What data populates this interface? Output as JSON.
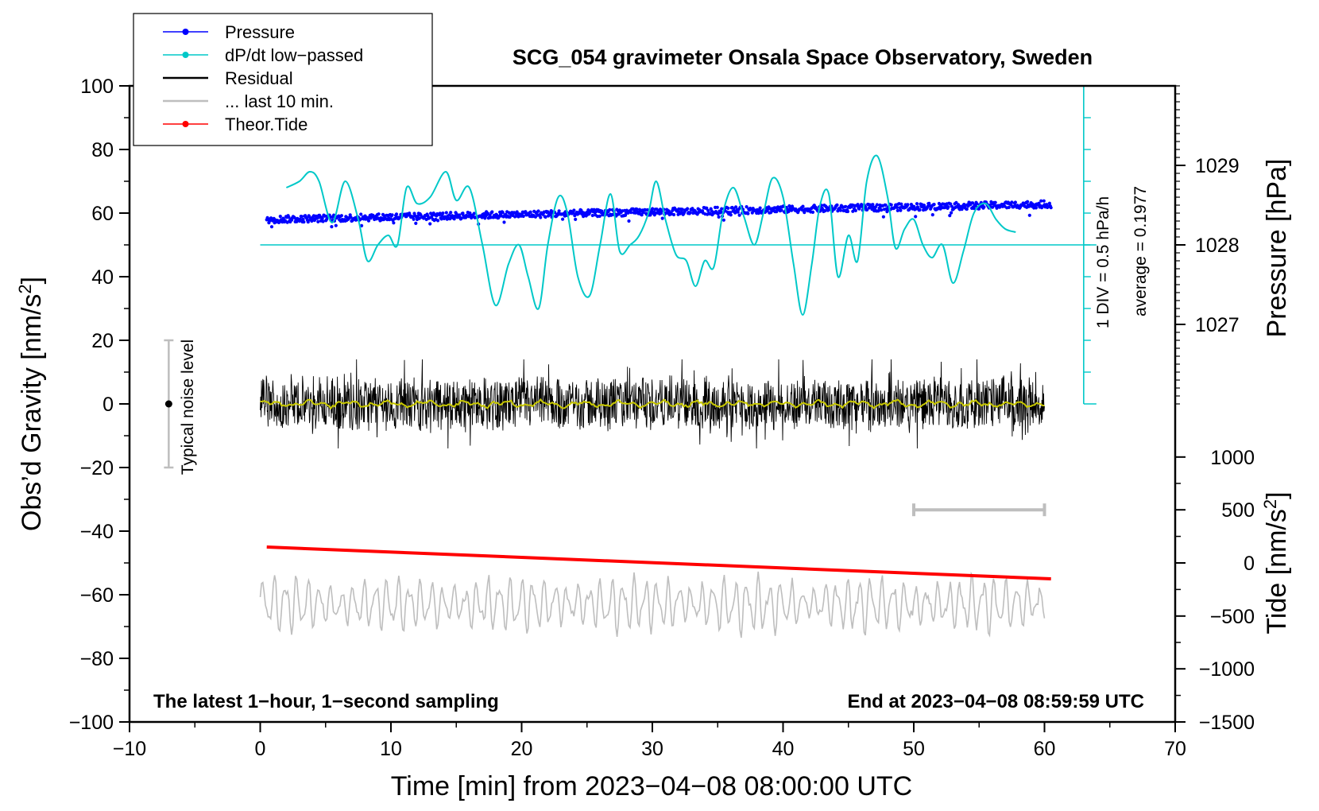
{
  "chart_data": {
    "type": "line",
    "title": "SCG_054 gravimeter Onsala Space Observatory, Sweden",
    "xlabel": "Time [min] from 2023−04−08 08:00:00 UTC",
    "ylabel_left_main": "Obs’d Gravity [nm/s",
    "ylabel_left_sup": "2",
    "ylabel_left_end": "]",
    "ylabel_right_pressure": "Pressure [hPa]",
    "ylabel_right_tide_main": "Tide [nm/s",
    "ylabel_right_tide_sup": "2",
    "ylabel_right_tide_end": "]",
    "xlim": [
      -10,
      70
    ],
    "ylim": [
      -100,
      100
    ],
    "x_ticks": [
      -10,
      0,
      10,
      20,
      30,
      40,
      50,
      60,
      70
    ],
    "x_tick_labels": [
      "−10",
      "0",
      "10",
      "20",
      "30",
      "40",
      "50",
      "60",
      "70"
    ],
    "y_ticks": [
      -100,
      -80,
      -60,
      -40,
      -20,
      0,
      20,
      40,
      60,
      80,
      100
    ],
    "y_tick_labels": [
      "−100",
      "−80",
      "−60",
      "−40",
      "−20",
      "0",
      "20",
      "40",
      "60",
      "80",
      "100"
    ],
    "pressure_axis": {
      "ticks": [
        1027,
        1028,
        1029
      ],
      "tick_labels": [
        "1027",
        "1028",
        "1029"
      ],
      "gravity_equiv": [
        25,
        50,
        75
      ]
    },
    "tide_axis": {
      "ticks": [
        -1500,
        -1000,
        -500,
        0,
        500,
        1000
      ],
      "tick_labels": [
        "−1500",
        "−1000",
        "−500",
        "0",
        "500",
        "1000"
      ],
      "gravity_equiv": [
        -100,
        -83.3,
        -66.7,
        -50,
        -33.3,
        -16.7
      ]
    },
    "legend": [
      {
        "label": "Pressure",
        "color": "#0000ff",
        "style": "line-dot"
      },
      {
        "label": "dP/dt low−passed",
        "color": "#00c8c8",
        "style": "line-dot"
      },
      {
        "label": "Residual",
        "color": "#000000",
        "style": "line"
      },
      {
        "label": "... last 10 min.",
        "color": "#bebebe",
        "style": "line"
      },
      {
        "label": "Theor.Tide",
        "color": "#ff0000",
        "style": "line-dot"
      }
    ],
    "series": [
      {
        "name": "Pressure",
        "color": "#0000ff",
        "x_range": [
          0.5,
          60.5
        ],
        "y_start": 58,
        "y_end": 62.8,
        "noise": 1.1
      },
      {
        "name": "dP/dt low−passed",
        "color": "#00c8c8",
        "baseline": 50,
        "x": [
          2,
          3,
          3.8,
          4.5,
          5.5,
          6.5,
          7.5,
          8.2,
          9,
          9.8,
          10.5,
          11.2,
          12,
          13,
          14.2,
          15,
          16,
          17,
          18,
          19,
          19.8,
          20.5,
          21.3,
          22,
          22.8,
          23.5,
          24.3,
          25.2,
          26,
          26.8,
          27.5,
          28.3,
          29,
          29.7,
          30.3,
          31,
          31.8,
          32.6,
          33.3,
          34,
          34.7,
          35.4,
          36.2,
          37,
          37.8,
          38.5,
          39.2,
          40,
          40.8,
          41.5,
          42.2,
          42.8,
          43.5,
          44.2,
          45,
          45.7,
          46.4,
          47.2,
          48,
          48.6,
          49.3,
          50,
          50.7,
          51.4,
          52.2,
          53,
          53.8,
          54.6,
          55.5,
          56.3,
          57,
          57.8
        ],
        "y": [
          68,
          70,
          73,
          70,
          57,
          70,
          58,
          45,
          50,
          53,
          50,
          68,
          63,
          65,
          73,
          64,
          68,
          50,
          31,
          44,
          50,
          40,
          30,
          50,
          65,
          60,
          40,
          34,
          50,
          66,
          48,
          50,
          53,
          60,
          70,
          58,
          47,
          45,
          37,
          45,
          43,
          60,
          68,
          59,
          50,
          60,
          71,
          65,
          44,
          28,
          44,
          62,
          66,
          40,
          53,
          45,
          70,
          78,
          65,
          49,
          55,
          58,
          50,
          46,
          50,
          38,
          48,
          60,
          63,
          58,
          55,
          54
        ]
      },
      {
        "name": "Residual",
        "color": "#000000",
        "x_range": [
          0,
          60
        ],
        "amplitude": 9.5
      },
      {
        "name": "Residual low−passed",
        "color": "#c8c800",
        "x_range": [
          0,
          60
        ],
        "amplitude": 1.2
      },
      {
        "name": "... last 10 min.",
        "color": "#bebebe",
        "x_range": [
          0,
          60
        ],
        "center": -63,
        "amplitude": 9
      },
      {
        "name": "Theor.Tide",
        "color": "#ff0000",
        "x": [
          0.5,
          60.5
        ],
        "y": [
          -45,
          -55
        ]
      }
    ],
    "annotations": {
      "left_note": "The latest 1−hour, 1−second sampling",
      "right_note": "End at 2023−04−08 08:59:59 UTC",
      "noise_label": "Typical noise level",
      "noise_bar": {
        "x": -7,
        "y_low": -20,
        "y_high": 20
      },
      "dpdt_scale": "1 DIV = 0.5 hPa/h",
      "dpdt_average": "average = 0.1977",
      "window_bar": {
        "x_start": 50,
        "x_end": 60,
        "y": -33.3
      }
    }
  }
}
